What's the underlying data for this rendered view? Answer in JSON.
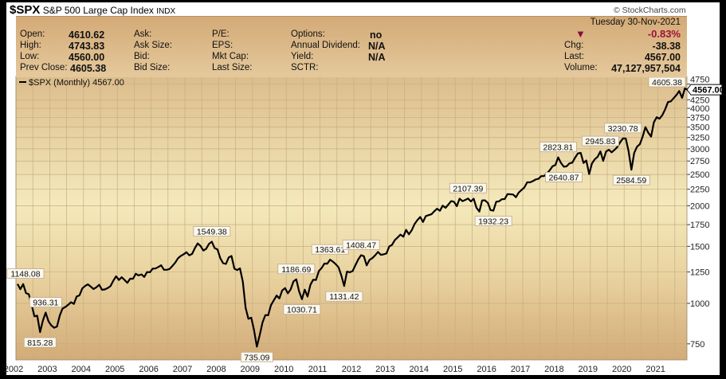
{
  "title": {
    "symbol": "$SPX",
    "name": "S&P 500 Large Cap Index",
    "exchange": "INDX"
  },
  "copyright": "© StockCharts.com",
  "quote": {
    "open_label": "Open:",
    "open": "4610.62",
    "high_label": "High:",
    "high": "4743.83",
    "low_label": "Low:",
    "low": "4560.00",
    "prev_label": "Prev Close:",
    "prev": "4605.38",
    "ask_label": "Ask:",
    "asksize_label": "Ask Size:",
    "bid_label": "Bid:",
    "bidsize_label": "Bid Size:",
    "pe_label": "P/E:",
    "eps_label": "EPS:",
    "mktcap_label": "Mkt Cap:",
    "lastsize_label": "Last Size:",
    "options_label": "Options:",
    "options": "no",
    "div_label": "Annual Dividend:",
    "div": "N/A",
    "yield_label": "Yield:",
    "yield": "N/A",
    "sctr_label": "SCTR:",
    "date": "Tuesday  30-Nov-2021",
    "pct": "-0.83%",
    "chg_label": "Chg:",
    "chg": "-38.38",
    "last_label": "Last:",
    "last": "4567.00",
    "vol_label": "Volume:",
    "vol": "47,127,957,504",
    "down_color": "#8b0a3a"
  },
  "chart_data": {
    "type": "line",
    "legend": "$SPX (Monthly) 4567.00",
    "scale": "log",
    "ylim": [
      670,
      4900
    ],
    "start": "2002-01",
    "yticks": [
      750,
      1000,
      1250,
      1500,
      1750,
      2000,
      2250,
      2500,
      2750,
      3000,
      3250,
      3500,
      3750,
      4000,
      4250,
      4750
    ],
    "xticks": [
      "2002",
      "2003",
      "2004",
      "2005",
      "2006",
      "2007",
      "2008",
      "2009",
      "2010",
      "2011",
      "2012",
      "2013",
      "2014",
      "2015",
      "2016",
      "2017",
      "2018",
      "2019",
      "2020",
      "2021"
    ],
    "last_value_label": "4567.00",
    "values": [
      1148.08,
      1106,
      1147,
      1076,
      1067,
      990,
      912,
      916,
      815.28,
      885,
      936.31,
      880,
      855,
      841,
      848,
      917,
      964,
      975,
      990,
      1008,
      996,
      1050,
      1058,
      1112,
      1131,
      1145,
      1126,
      1107,
      1121,
      1141,
      1101,
      1104,
      1115,
      1130,
      1174,
      1212,
      1181,
      1204,
      1181,
      1157,
      1192,
      1191,
      1234,
      1220,
      1229,
      1207,
      1249,
      1248,
      1280,
      1281,
      1295,
      1311,
      1270,
      1270,
      1277,
      1304,
      1336,
      1378,
      1401,
      1418,
      1438,
      1407,
      1421,
      1482,
      1531,
      1503,
      1455,
      1474,
      1527,
      1549.38,
      1481,
      1468,
      1379,
      1331,
      1323,
      1386,
      1400,
      1280,
      1267,
      1283,
      1166,
      969,
      896,
      903,
      826,
      735.09,
      798,
      873,
      919,
      919,
      987,
      1021,
      1057,
      1036,
      1096,
      1115,
      1074,
      1104,
      1169,
      1186.69,
      1089,
      1030.71,
      1102,
      1049,
      1141,
      1183,
      1181,
      1258,
      1286,
      1327,
      1326,
      1363.61,
      1345,
      1321,
      1292,
      1219,
      1131.42,
      1253,
      1247,
      1258,
      1312,
      1366,
      1408.47,
      1398,
      1310,
      1362,
      1379,
      1407,
      1441,
      1412,
      1416,
      1426,
      1498,
      1515,
      1569,
      1598,
      1631,
      1606,
      1686,
      1633,
      1682,
      1757,
      1806,
      1848,
      1783,
      1859,
      1872,
      1884,
      1924,
      1960,
      1931,
      2003,
      1972,
      2018,
      2068,
      2059,
      1995,
      2105,
      2068,
      2086,
      2107.39,
      2063,
      2104,
      1972,
      1920,
      2079,
      2080,
      2044,
      1940,
      1932.23,
      2060,
      2065,
      2097,
      2099,
      2174,
      2171,
      2168,
      2126,
      2199,
      2239,
      2279,
      2364,
      2363,
      2384,
      2412,
      2423,
      2470,
      2472,
      2519,
      2575,
      2648,
      2674,
      2823.81,
      2714,
      2640.87,
      2648,
      2705,
      2718,
      2816,
      2902,
      2914,
      2712,
      2760,
      2507,
      2704,
      2784,
      2834,
      2945.83,
      2752,
      2942,
      2980,
      2926,
      2977,
      3038,
      3141,
      3230.78,
      3226,
      2954,
      2584.59,
      2912,
      3044,
      3100,
      3271,
      3500,
      3363,
      3270,
      3622,
      3756,
      3714,
      3811,
      3973,
      4181,
      4204,
      4298,
      4395,
      4523,
      4308,
      4605.38,
      4567
    ],
    "annotations": [
      {
        "i": 0,
        "label": "1148.08",
        "pos": "above"
      },
      {
        "i": 10,
        "label": "936.31",
        "pos": "above"
      },
      {
        "i": 8,
        "label": "815.28",
        "pos": "below"
      },
      {
        "i": 69,
        "label": "1549.38",
        "pos": "above"
      },
      {
        "i": 85,
        "label": "735.09",
        "pos": "below"
      },
      {
        "i": 99,
        "label": "1186.69",
        "pos": "above"
      },
      {
        "i": 101,
        "label": "1030.71",
        "pos": "below"
      },
      {
        "i": 111,
        "label": "1363.61",
        "pos": "above"
      },
      {
        "i": 116,
        "label": "1131.42",
        "pos": "below"
      },
      {
        "i": 122,
        "label": "1408.47",
        "pos": "above"
      },
      {
        "i": 160,
        "label": "2107.39",
        "pos": "above"
      },
      {
        "i": 169,
        "label": "1932.23",
        "pos": "below"
      },
      {
        "i": 192,
        "label": "2823.81",
        "pos": "above"
      },
      {
        "i": 194,
        "label": "2640.87",
        "pos": "below"
      },
      {
        "i": 207,
        "label": "2945.83",
        "pos": "above"
      },
      {
        "i": 215,
        "label": "3230.78",
        "pos": "above"
      },
      {
        "i": 218,
        "label": "2584.59",
        "pos": "below"
      },
      {
        "i": 237,
        "label": "4605.38",
        "pos": "above"
      }
    ]
  }
}
